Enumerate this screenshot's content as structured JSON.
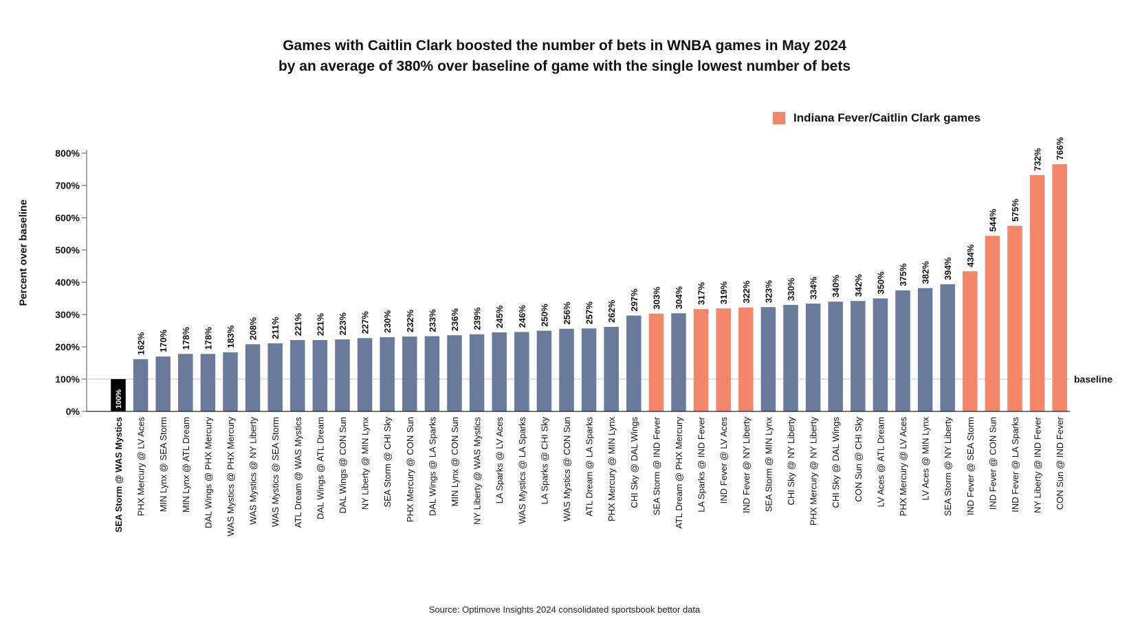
{
  "title_line1": "Games with Caitlin Clark boosted the number of bets in WNBA games in May 2024",
  "title_line2": "by an average of 380% over baseline of game with the single lowest number of bets",
  "legend_label": "Indiana Fever/Caitlin Clark games",
  "source": "Source: Optimove Insights 2024 consolidated sportsbook bettor data",
  "colors": {
    "regular": "#6a7a9b",
    "fever": "#f4876a",
    "baseline": "#000000"
  },
  "chart_data": {
    "type": "bar",
    "ylabel": "Percent over baseline",
    "ylim": [
      0,
      800
    ],
    "yticks": [
      "0%",
      "100%",
      "200%",
      "300%",
      "400%",
      "500%",
      "600%",
      "700%",
      "800%"
    ],
    "baseline_value": 100,
    "baseline_label": "baseline",
    "legend_position": "top-right",
    "categories": [
      "SEA Storm @ WAS Mystics",
      "PHX Mercury @ LV Aces",
      "MIN Lynx @ SEA Storm",
      "MIN Lynx @ ATL Dream",
      "DAL Wings @ PHX Mercury",
      "WAS Mystics @ PHX Mercury",
      "WAS Mystics @ NY Liberty",
      "WAS Mystics @ SEA Storm",
      "ATL Dream @ WAS Mystics",
      "DAL Wings @ ATL Dream",
      "DAL Wings @ CON Sun",
      "NY Liberty @ MIN Lynx",
      "SEA Storm @ CHI Sky",
      "PHX Mercury @ CON Sun",
      "DAL Wings @ LA Sparks",
      "MIN Lynx @ CON Sun",
      "NY Liberty @ WAS Mystics",
      "LA Sparks @ LV Aces",
      "WAS Mystics @ LA Sparks",
      "LA Sparks @ CHI Sky",
      "WAS Mystics @ CON Sun",
      "ATL Dream @ LA Sparks",
      "PHX Mercury @ MIN Lynx",
      "CHI Sky @ DAL Wings",
      "SEA Storm @ IND Fever",
      "ATL Dream @ PHX Mercury",
      "LA Sparks @ IND Fever",
      "IND Fever @ LV Aces",
      "IND Fever @ NY Liberty",
      "SEA Storm @ MIN Lynx",
      "CHI Sky @ NY Liberty",
      "PHX Mercury @ NY Liberty",
      "CHI Sky @ DAL Wings",
      "CON Sun @ CHI Sky",
      "LV Aces @ ATL Dream",
      "PHX Mercury @ LV Aces",
      "LV Aces @ MIN Lynx",
      "SEA Storm @ NY Liberty",
      "IND Fever @ SEA Storm",
      "IND Fever @ CON Sun",
      "IND Fever @ LA Sparks",
      "NY Liberty @ IND Fever",
      "CON Sun @ IND Fever"
    ],
    "values": [
      100,
      162,
      170,
      178,
      178,
      183,
      208,
      211,
      221,
      221,
      223,
      227,
      230,
      232,
      233,
      236,
      239,
      245,
      246,
      250,
      256,
      257,
      262,
      297,
      303,
      304,
      317,
      319,
      322,
      323,
      330,
      334,
      340,
      342,
      350,
      375,
      382,
      394,
      434,
      544,
      575,
      732,
      766
    ],
    "value_labels": [
      "100%",
      "162%",
      "170%",
      "178%",
      "178%",
      "183%",
      "208%",
      "211%",
      "221%",
      "221%",
      "223%",
      "227%",
      "230%",
      "232%",
      "233%",
      "236%",
      "239%",
      "245%",
      "246%",
      "250%",
      "256%",
      "257%",
      "262%",
      "297%",
      "303%",
      "304%",
      "317%",
      "319%",
      "322%",
      "323%",
      "330%",
      "334%",
      "340%",
      "342%",
      "350%",
      "375%",
      "382%",
      "394%",
      "434%",
      "544%",
      "575%",
      "732%",
      "766%"
    ],
    "group": [
      "baseline",
      "other",
      "other",
      "other",
      "other",
      "other",
      "other",
      "other",
      "other",
      "other",
      "other",
      "other",
      "other",
      "other",
      "other",
      "other",
      "other",
      "other",
      "other",
      "other",
      "other",
      "other",
      "other",
      "other",
      "fever",
      "other",
      "fever",
      "fever",
      "fever",
      "other",
      "other",
      "other",
      "other",
      "other",
      "other",
      "other",
      "other",
      "other",
      "fever",
      "fever",
      "fever",
      "fever",
      "fever"
    ]
  }
}
